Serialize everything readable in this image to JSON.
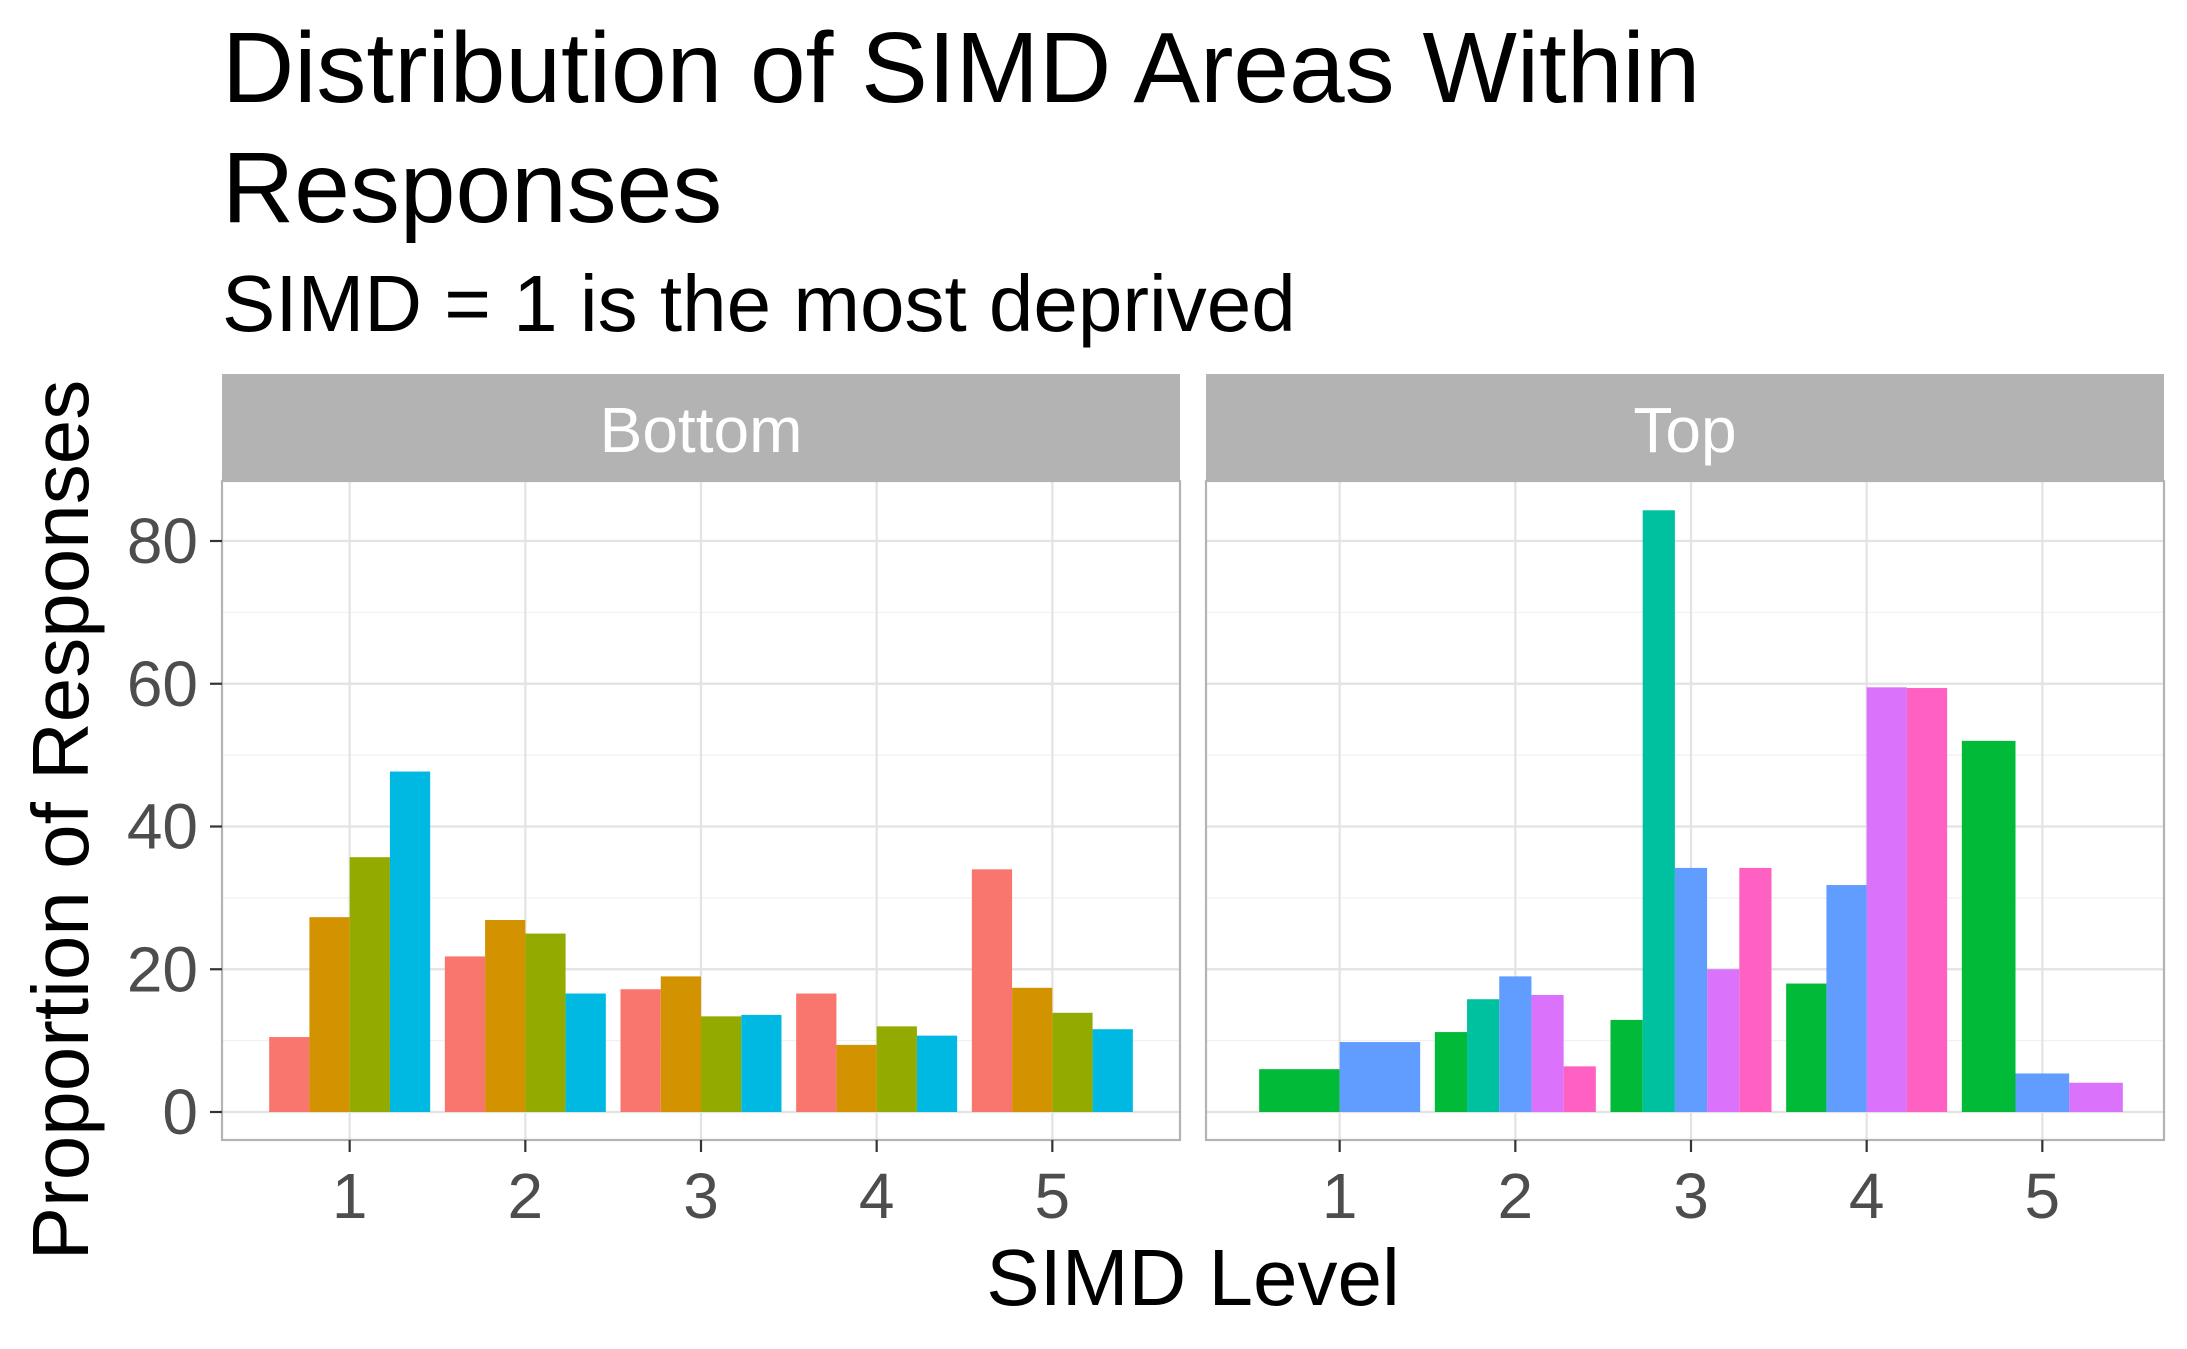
{
  "chart_data": {
    "type": "bar",
    "title": "Distribution of SIMD Areas Within",
    "title_line2": "Responses",
    "subtitle": "SIMD = 1 is the most deprived",
    "xlabel": "SIMD Level",
    "ylabel": "Proportion of Responses",
    "categories": [
      "1",
      "2",
      "3",
      "4",
      "5"
    ],
    "yticks": [
      "0",
      "20",
      "40",
      "60",
      "80"
    ],
    "ylim": [
      -4,
      88
    ],
    "grid": true,
    "legend": "none",
    "panels": [
      {
        "label": "Bottom",
        "groups": [
          {
            "category": "1",
            "bars": [
              {
                "value": 10.5,
                "color": "#F8766D"
              },
              {
                "value": 27.3,
                "color": "#D39200"
              },
              {
                "value": 35.7,
                "color": "#93AA00"
              },
              {
                "value": 47.7,
                "color": "#00B9E3"
              }
            ]
          },
          {
            "category": "2",
            "bars": [
              {
                "value": 21.8,
                "color": "#F8766D"
              },
              {
                "value": 26.9,
                "color": "#D39200"
              },
              {
                "value": 25.0,
                "color": "#93AA00"
              },
              {
                "value": 16.6,
                "color": "#00B9E3"
              }
            ]
          },
          {
            "category": "3",
            "bars": [
              {
                "value": 17.2,
                "color": "#F8766D"
              },
              {
                "value": 19.0,
                "color": "#D39200"
              },
              {
                "value": 13.4,
                "color": "#93AA00"
              },
              {
                "value": 13.6,
                "color": "#00B9E3"
              }
            ]
          },
          {
            "category": "4",
            "bars": [
              {
                "value": 16.6,
                "color": "#F8766D"
              },
              {
                "value": 9.4,
                "color": "#D39200"
              },
              {
                "value": 12.0,
                "color": "#93AA00"
              },
              {
                "value": 10.7,
                "color": "#00B9E3"
              }
            ]
          },
          {
            "category": "5",
            "bars": [
              {
                "value": 34.0,
                "color": "#F8766D"
              },
              {
                "value": 17.4,
                "color": "#D39200"
              },
              {
                "value": 13.9,
                "color": "#93AA00"
              },
              {
                "value": 11.6,
                "color": "#00B9E3"
              }
            ]
          }
        ]
      },
      {
        "label": "Top",
        "groups": [
          {
            "category": "1",
            "bars": [
              {
                "value": 6.0,
                "color": "#00BA38"
              },
              {
                "value": 9.8,
                "color": "#619CFF"
              }
            ]
          },
          {
            "category": "2",
            "bars": [
              {
                "value": 11.2,
                "color": "#00BA38"
              },
              {
                "value": 15.8,
                "color": "#00C19F"
              },
              {
                "value": 19.0,
                "color": "#619CFF"
              },
              {
                "value": 16.4,
                "color": "#DB72FB"
              },
              {
                "value": 6.4,
                "color": "#FF61C3"
              }
            ]
          },
          {
            "category": "3",
            "bars": [
              {
                "value": 12.9,
                "color": "#00BA38"
              },
              {
                "value": 84.3,
                "color": "#00C19F"
              },
              {
                "value": 34.2,
                "color": "#619CFF"
              },
              {
                "value": 20.0,
                "color": "#DB72FB"
              },
              {
                "value": 34.2,
                "color": "#FF61C3"
              }
            ]
          },
          {
            "category": "4",
            "bars": [
              {
                "value": 18.0,
                "color": "#00BA38"
              },
              {
                "value": 31.8,
                "color": "#619CFF"
              },
              {
                "value": 59.5,
                "color": "#DB72FB"
              },
              {
                "value": 59.4,
                "color": "#FF61C3"
              }
            ]
          },
          {
            "category": "5",
            "bars": [
              {
                "value": 52.0,
                "color": "#00BA38"
              },
              {
                "value": 5.4,
                "color": "#619CFF"
              },
              {
                "value": 4.1,
                "color": "#DB72FB"
              }
            ]
          }
        ]
      }
    ]
  }
}
